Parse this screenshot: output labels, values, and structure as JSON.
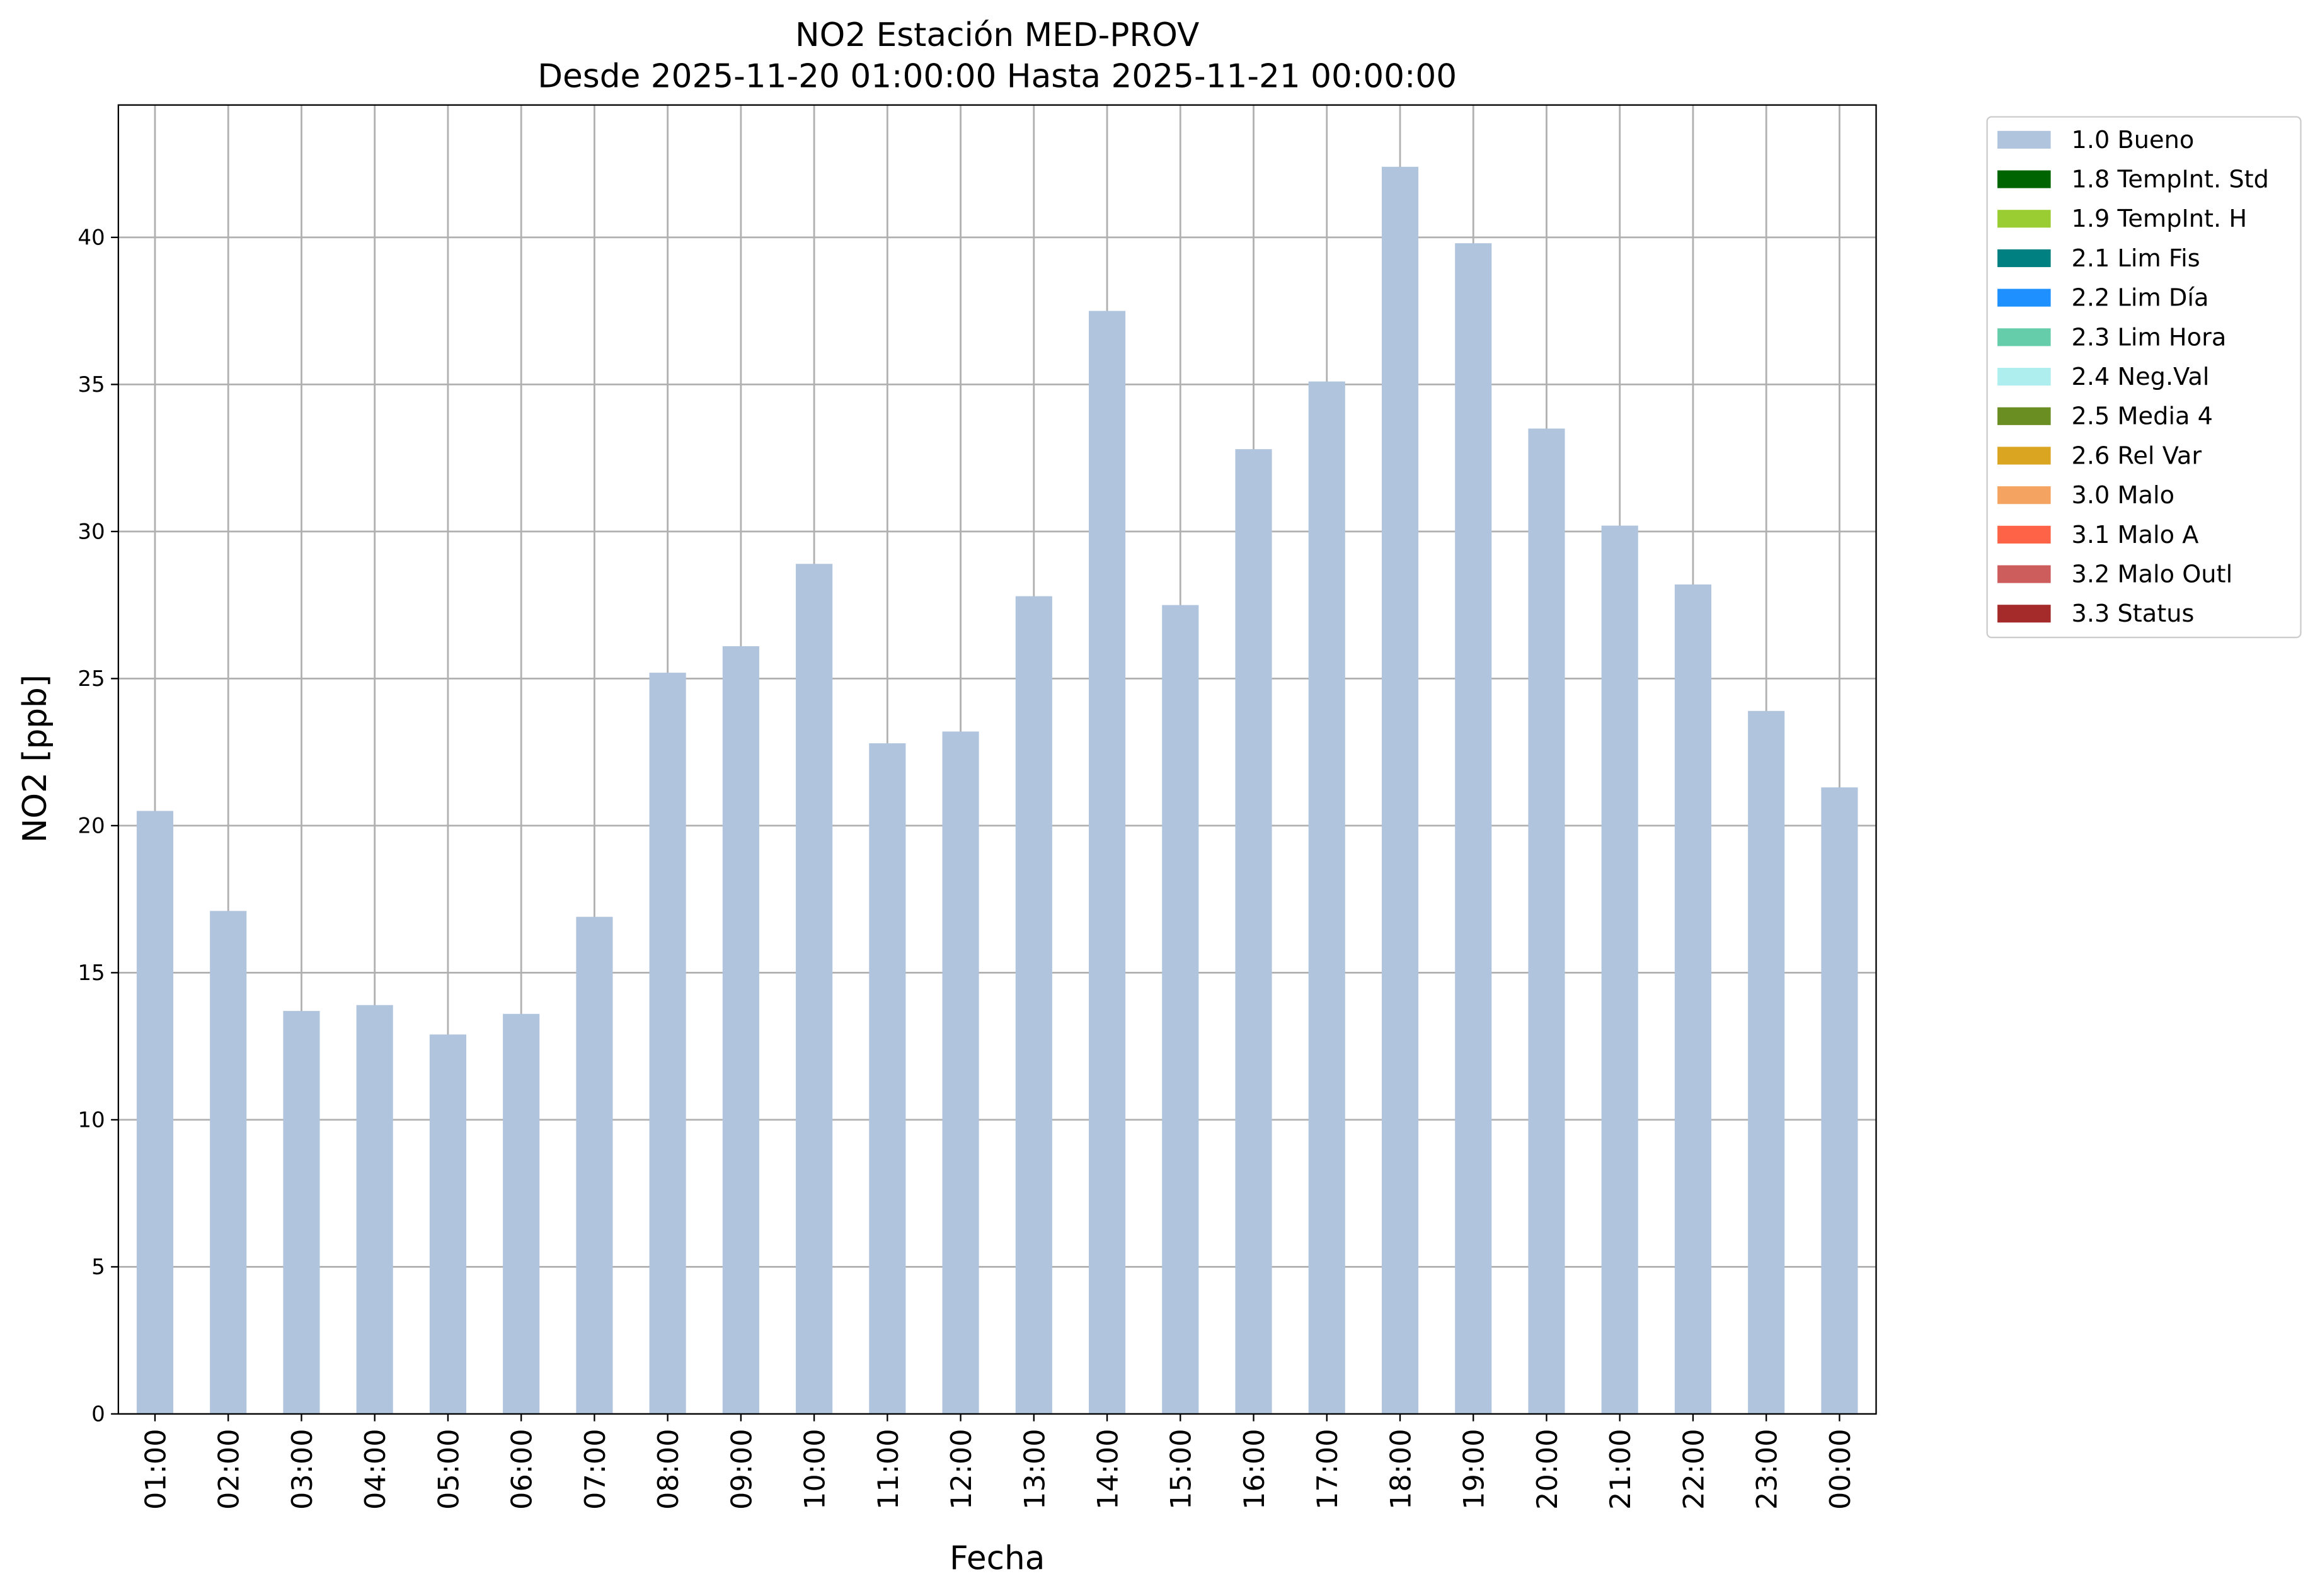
{
  "chart_data": {
    "type": "bar",
    "title": "NO2 Estación MED-PROV",
    "subtitle": "Desde 2025-11-20 01:00:00 Hasta 2025-11-21 00:00:00",
    "xlabel": "Fecha",
    "ylabel": "NO2 [ppb]",
    "ylim": [
      0,
      44.5
    ],
    "yticks": [
      0,
      5,
      10,
      15,
      20,
      25,
      30,
      35,
      40
    ],
    "grid": true,
    "legend_position": "outside-top-right",
    "categories": [
      "01:00",
      "02:00",
      "03:00",
      "04:00",
      "05:00",
      "06:00",
      "07:00",
      "08:00",
      "09:00",
      "10:00",
      "11:00",
      "12:00",
      "13:00",
      "14:00",
      "15:00",
      "16:00",
      "17:00",
      "18:00",
      "19:00",
      "20:00",
      "21:00",
      "22:00",
      "23:00",
      "00:00"
    ],
    "series": [
      {
        "name": "1.0 Bueno",
        "color": "#b0c4de",
        "values": [
          20.5,
          17.1,
          13.7,
          13.9,
          12.9,
          13.6,
          16.9,
          25.2,
          26.1,
          28.9,
          22.8,
          23.2,
          27.8,
          37.5,
          27.5,
          32.8,
          35.1,
          42.4,
          39.8,
          33.5,
          30.2,
          28.2,
          23.9,
          21.3
        ]
      }
    ],
    "legend": [
      {
        "label": "1.0 Bueno",
        "color": "#b0c4de"
      },
      {
        "label": "1.8 TempInt. Std",
        "color": "#006400"
      },
      {
        "label": "1.9 TempInt. H",
        "color": "#9acd32"
      },
      {
        "label": "2.1 Lim Fis",
        "color": "#008080"
      },
      {
        "label": "2.2 Lim Día",
        "color": "#1e90ff"
      },
      {
        "label": "2.3 Lim Hora",
        "color": "#66cdaa"
      },
      {
        "label": "2.4 Neg.Val",
        "color": "#afeeee"
      },
      {
        "label": "2.5 Media 4",
        "color": "#6b8e23"
      },
      {
        "label": "2.6 Rel Var",
        "color": "#daa520"
      },
      {
        "label": "3.0 Malo",
        "color": "#f4a460"
      },
      {
        "label": "3.1 Malo A",
        "color": "#ff6347"
      },
      {
        "label": "3.2 Malo Outl",
        "color": "#cd5c5c"
      },
      {
        "label": "3.3 Status",
        "color": "#a52a2a"
      }
    ]
  }
}
